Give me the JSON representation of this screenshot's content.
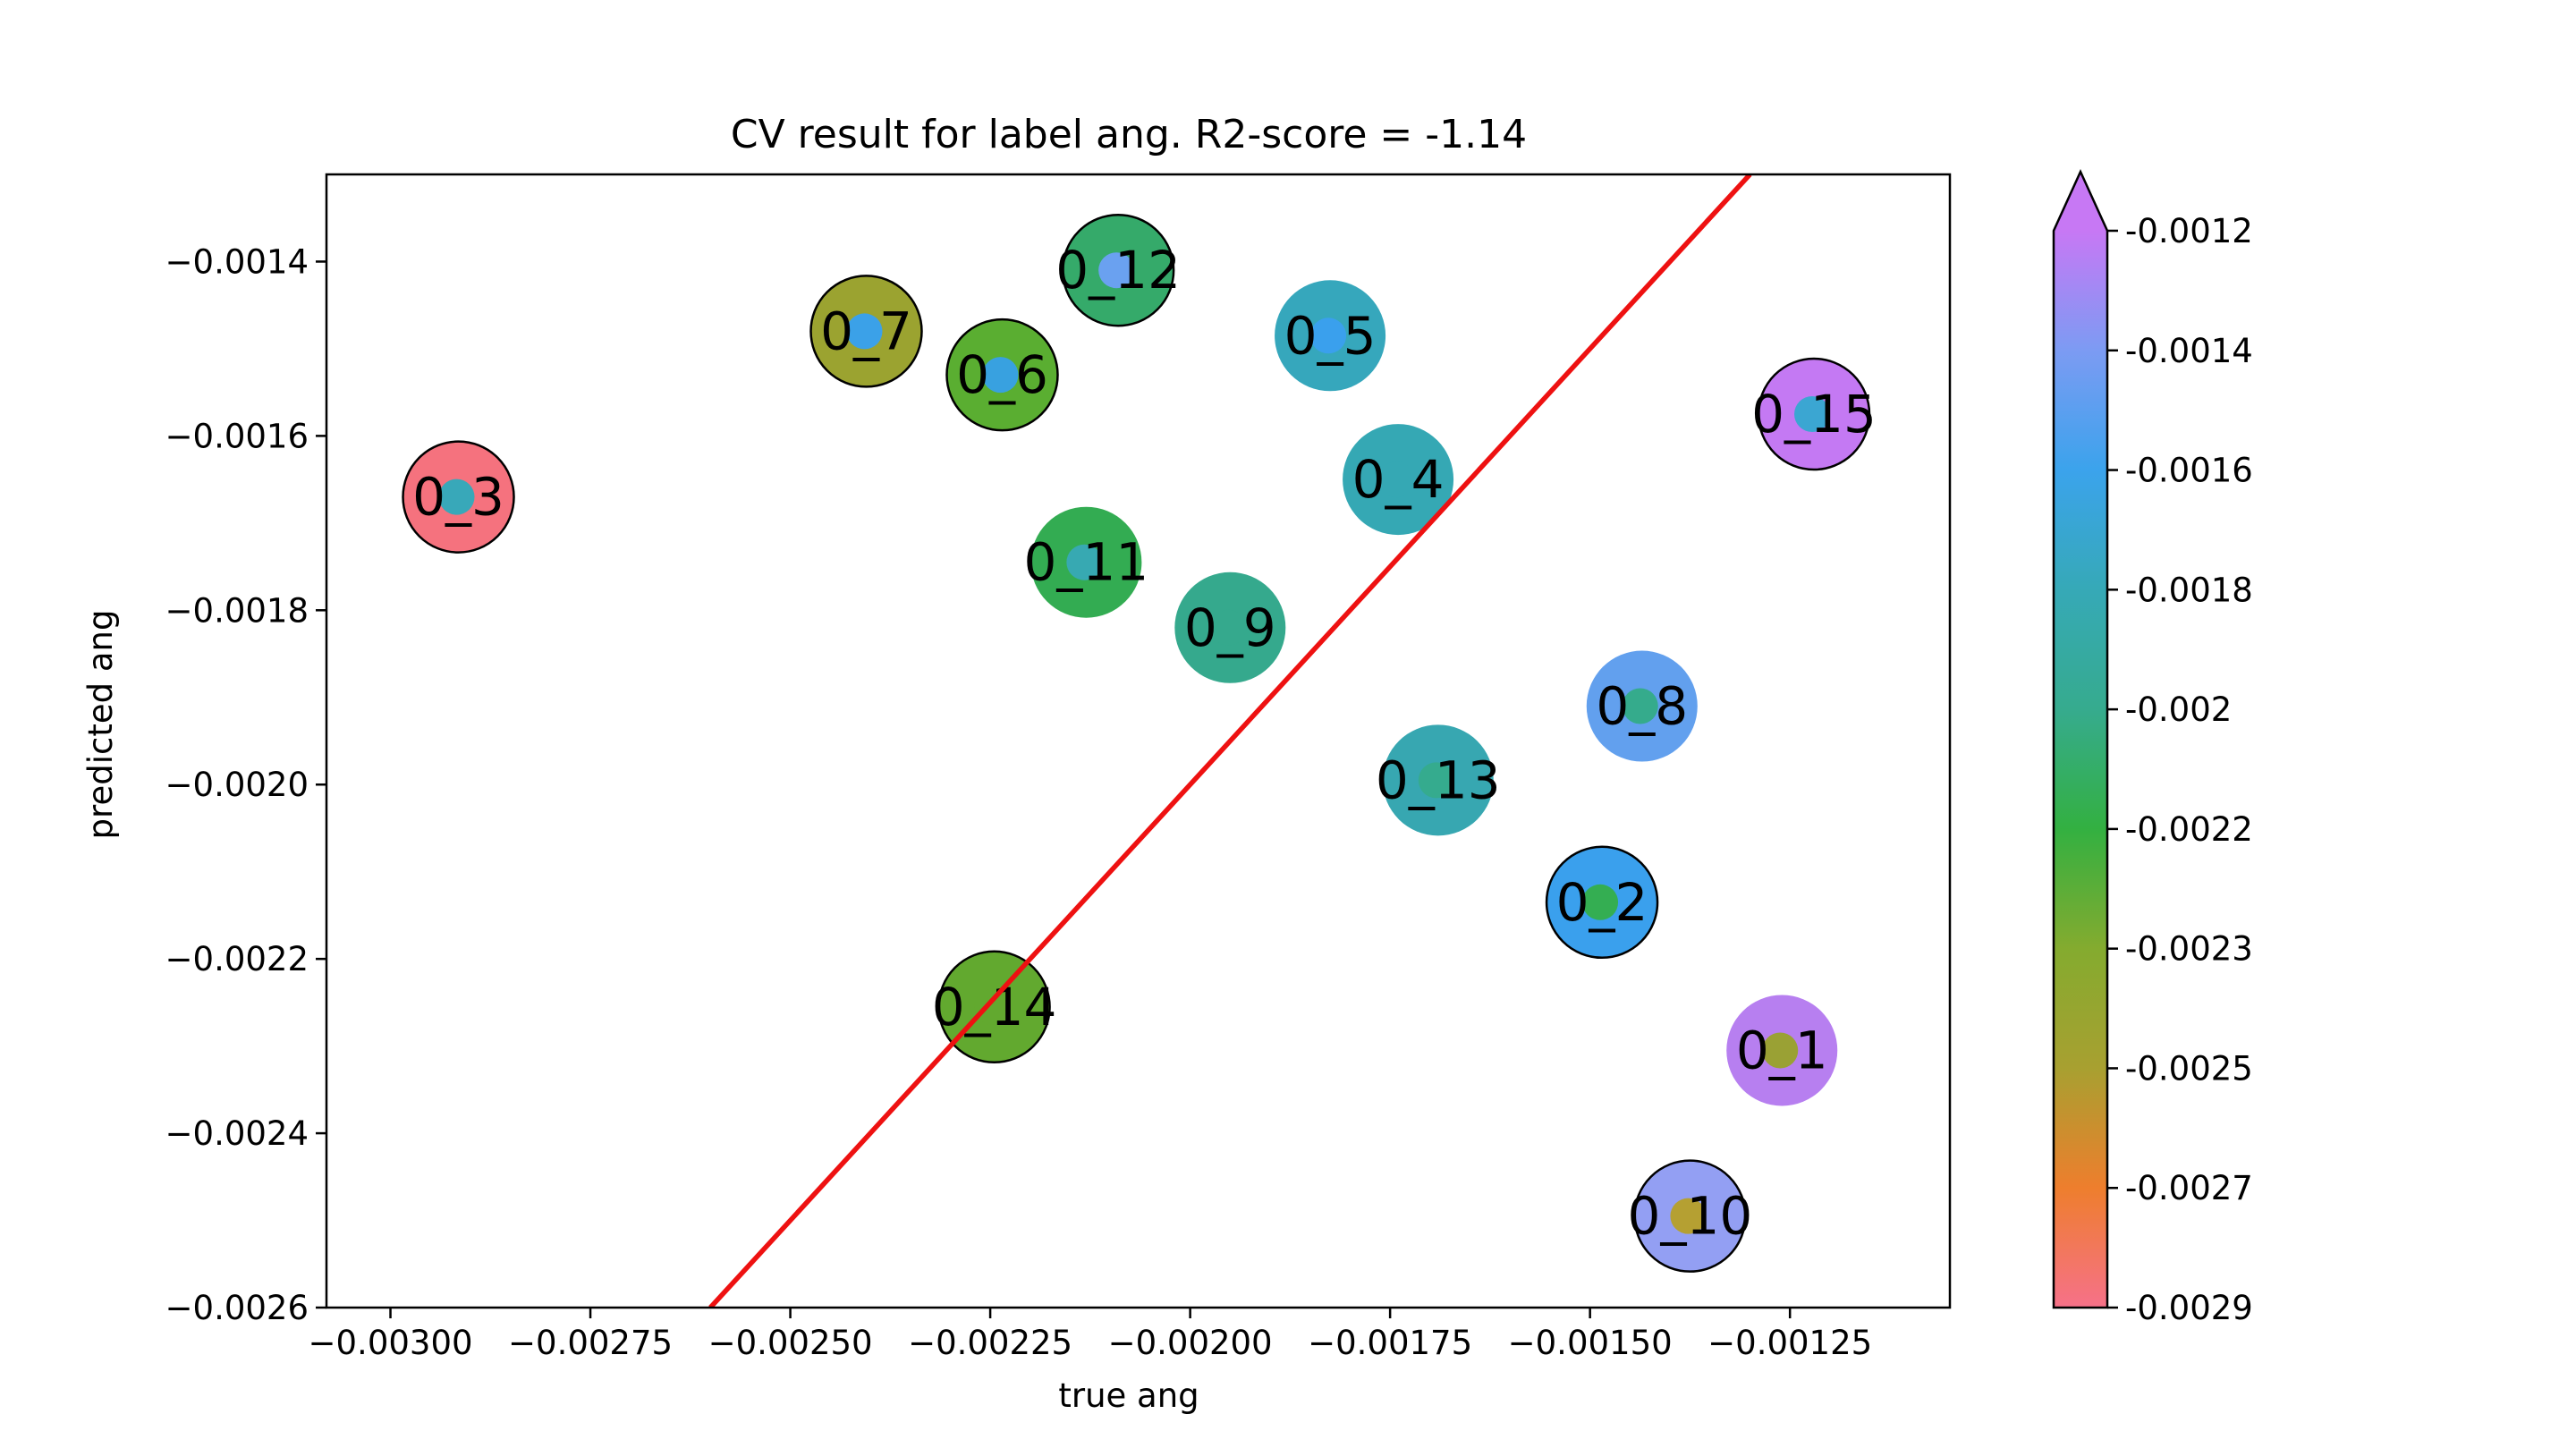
{
  "chart_data": {
    "type": "scatter",
    "title": "CV result for label ang. R2-score = -1.14",
    "xlabel": "true ang",
    "ylabel": "predicted ang",
    "xlim": [
      -0.00308,
      -0.00105
    ],
    "ylim": [
      -0.0026,
      -0.0013
    ],
    "x_ticks": [
      -0.003,
      -0.00275,
      -0.0025,
      -0.00225,
      -0.002,
      -0.00175,
      -0.0015,
      -0.00125
    ],
    "x_tick_labels": [
      "−0.00300",
      "−0.00275",
      "−0.00250",
      "−0.00225",
      "−0.00200",
      "−0.00175",
      "−0.00150",
      "−0.00125"
    ],
    "y_ticks": [
      -0.0014,
      -0.0016,
      -0.0018,
      -0.002,
      -0.0022,
      -0.0024,
      -0.0026
    ],
    "y_tick_labels": [
      "−0.0014",
      "−0.0016",
      "−0.0018",
      "−0.0020",
      "−0.0022",
      "−0.0024",
      "−0.0026"
    ],
    "identity_line": {
      "color": "#ee1111"
    },
    "colorbar": {
      "ticks": [
        -0.0012,
        -0.0014,
        -0.0016,
        -0.0018,
        -0.002,
        -0.0022,
        -0.0023,
        -0.0025,
        -0.0027,
        -0.0029
      ],
      "tick_labels": [
        "-0.0012",
        "-0.0014",
        "-0.0016",
        "-0.0018",
        "-0.002",
        "-0.0022",
        "-0.0023",
        "-0.0025",
        "-0.0027",
        "-0.0029"
      ],
      "colors": [
        "#c778f4",
        "#7c9bf3",
        "#3ba3ec",
        "#36a9b7",
        "#36ab8e",
        "#33b041",
        "#84ab2f",
        "#a8a030",
        "#ee7e2d",
        "#f67189"
      ],
      "extend": "max"
    },
    "points": [
      {
        "label": "0_1",
        "x": -0.00126,
        "y": -0.002305,
        "true_color": "#b77ff0",
        "pred_color": "#9aa134",
        "edge": false
      },
      {
        "label": "0_2",
        "x": -0.001485,
        "y": -0.002135,
        "true_color": "#3aa0ed",
        "pred_color": "#34ae52",
        "edge": true
      },
      {
        "label": "0_3",
        "x": -0.002915,
        "y": -0.00167,
        "true_color": "#f5727e",
        "pred_color": "#38a8b9",
        "edge": true
      },
      {
        "label": "0_4",
        "x": -0.00174,
        "y": -0.00165,
        "true_color": "#35a8b4",
        "pred_color": "#35a8b4",
        "edge": false
      },
      {
        "label": "0_5",
        "x": -0.001825,
        "y": -0.001485,
        "true_color": "#36a7bc",
        "pred_color": "#3aa0ed",
        "edge": false
      },
      {
        "label": "0_6",
        "x": -0.002235,
        "y": -0.00153,
        "true_color": "#5aae31",
        "pred_color": "#38a1e0",
        "edge": true
      },
      {
        "label": "0_7",
        "x": -0.002405,
        "y": -0.00148,
        "true_color": "#9ba330",
        "pred_color": "#3ba1e8",
        "edge": true
      },
      {
        "label": "0_8",
        "x": -0.001435,
        "y": -0.00191,
        "true_color": "#62a0ee",
        "pred_color": "#35ab8c",
        "edge": false
      },
      {
        "label": "0_9",
        "x": -0.00195,
        "y": -0.00182,
        "true_color": "#35a98d",
        "pred_color": "#35a98d",
        "edge": false
      },
      {
        "label": "0_10",
        "x": -0.001375,
        "y": -0.002495,
        "true_color": "#939ff3",
        "pred_color": "#b5a032",
        "edge": true
      },
      {
        "label": "0_11",
        "x": -0.00213,
        "y": -0.001745,
        "true_color": "#33ac52",
        "pred_color": "#37a9b2",
        "edge": false
      },
      {
        "label": "0_12",
        "x": -0.00209,
        "y": -0.00141,
        "true_color": "#35aa6a",
        "pred_color": "#6aa1f0",
        "edge": true
      },
      {
        "label": "0_13",
        "x": -0.00169,
        "y": -0.001995,
        "true_color": "#37a7b1",
        "pred_color": "#35ab8e",
        "edge": false
      },
      {
        "label": "0_14",
        "x": -0.002245,
        "y": -0.002255,
        "true_color": "#62a92f",
        "pred_color": "#62a92f",
        "edge": true
      },
      {
        "label": "0_15",
        "x": -0.00122,
        "y": -0.001575,
        "true_color": "#c479f3",
        "pred_color": "#3ba6d2",
        "edge": true
      }
    ]
  }
}
